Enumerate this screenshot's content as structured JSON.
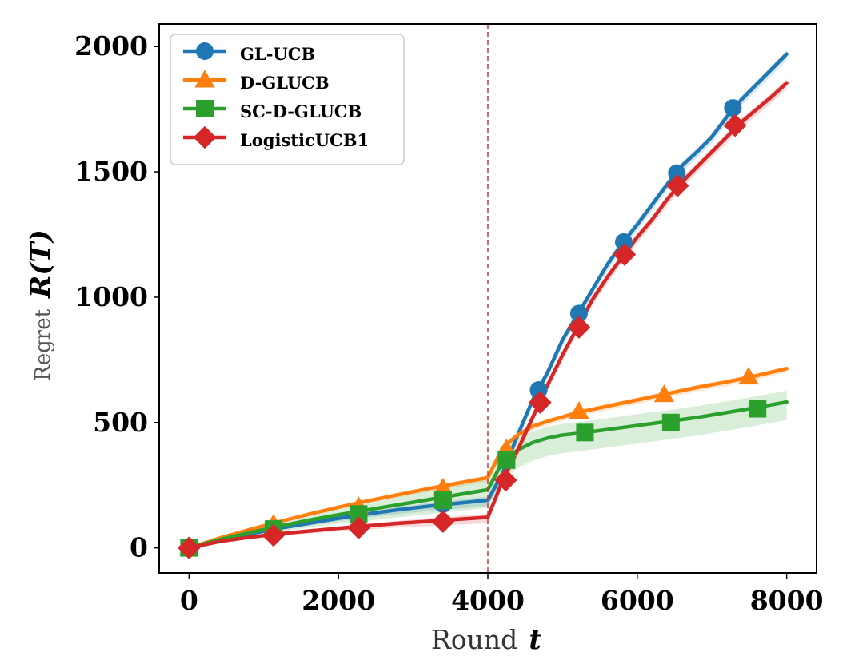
{
  "chart_data": {
    "type": "line",
    "xlabel": {
      "prefix": "Round",
      "var": "t"
    },
    "ylabel": {
      "prefix": "Regret",
      "var": "R(T)"
    },
    "xlim": [
      -400,
      8400
    ],
    "ylim": [
      -100,
      2090
    ],
    "xticks": [
      0,
      2000,
      4000,
      6000,
      8000
    ],
    "xtick_labels": [
      "0",
      "2000",
      "4000",
      "6000",
      "8000"
    ],
    "yticks": [
      0,
      500,
      1000,
      1500,
      2000
    ],
    "ytick_labels": [
      "0",
      "500",
      "1000",
      "1500",
      "2000"
    ],
    "grid": false,
    "legend_position": "top-left",
    "vline": {
      "x": 4000,
      "color": "#d62728",
      "style": "dashed"
    },
    "series": [
      {
        "name": "GL-UCB",
        "color": "#1f77b4",
        "marker": "circle",
        "x": [
          0,
          400,
          800,
          1200,
          1600,
          2000,
          2400,
          2800,
          3200,
          3600,
          4000,
          4200,
          4400,
          4600,
          4800,
          5000,
          5200,
          5400,
          5600,
          5800,
          6000,
          6200,
          6400,
          6600,
          6800,
          7000,
          7200,
          7400,
          7600,
          7800,
          8000
        ],
        "values": [
          0,
          30,
          55,
          78,
          98,
          118,
          136,
          152,
          166,
          178,
          190,
          300,
          450,
          590,
          700,
          830,
          930,
          1030,
          1130,
          1215,
          1290,
          1370,
          1450,
          1525,
          1580,
          1640,
          1720,
          1790,
          1850,
          1910,
          1970
        ],
        "marker_x": [
          0,
          1130,
          2270,
          3400,
          4680,
          5220,
          5820,
          6530,
          7280
        ],
        "marker_values": [
          0,
          70,
          130,
          175,
          630,
          935,
          1220,
          1495,
          1755
        ],
        "band": 15
      },
      {
        "name": "D-GLUCB",
        "color": "#ff7f0e",
        "marker": "triangle",
        "x": [
          0,
          400,
          800,
          1200,
          1600,
          2000,
          2400,
          2800,
          3200,
          3600,
          4000,
          4200,
          4400,
          4600,
          4800,
          5000,
          5200,
          5600,
          6000,
          6400,
          6800,
          7200,
          7600,
          8000
        ],
        "values": [
          0,
          38,
          72,
          104,
          134,
          162,
          188,
          212,
          236,
          258,
          280,
          400,
          450,
          485,
          505,
          522,
          540,
          565,
          590,
          615,
          640,
          662,
          687,
          715
        ],
        "marker_x": [
          0,
          1130,
          2270,
          3400,
          4250,
          5220,
          6360,
          7490
        ],
        "marker_values": [
          0,
          95,
          165,
          240,
          395,
          545,
          612,
          682
        ],
        "band": 10
      },
      {
        "name": "SC-D-GLUCB",
        "color": "#2ca02c",
        "marker": "square",
        "x": [
          0,
          400,
          800,
          1200,
          1600,
          2000,
          2400,
          2800,
          3200,
          3600,
          4000,
          4200,
          4400,
          4600,
          4800,
          5000,
          5300,
          5600,
          6000,
          6400,
          6800,
          7200,
          7600,
          8000
        ],
        "values": [
          0,
          32,
          60,
          86,
          110,
          132,
          152,
          172,
          192,
          212,
          232,
          345,
          390,
          420,
          438,
          450,
          460,
          472,
          488,
          504,
          520,
          540,
          560,
          582
        ],
        "marker_x": [
          0,
          1130,
          2270,
          3400,
          4250,
          5300,
          6450,
          7610
        ],
        "marker_values": [
          0,
          75,
          135,
          190,
          350,
          460,
          500,
          555
        ],
        "band": 45
      },
      {
        "name": "LogisticUCB1",
        "color": "#d62728",
        "marker": "diamond",
        "x": [
          0,
          400,
          800,
          1200,
          1600,
          2000,
          2400,
          2800,
          3200,
          3600,
          4000,
          4200,
          4400,
          4600,
          4800,
          5000,
          5200,
          5400,
          5600,
          5800,
          6000,
          6200,
          6400,
          6600,
          6800,
          7000,
          7200,
          7400,
          7600,
          7800,
          8000
        ],
        "values": [
          0,
          25,
          42,
          56,
          67,
          78,
          88,
          98,
          106,
          114,
          122,
          270,
          390,
          520,
          650,
          770,
          880,
          990,
          1080,
          1160,
          1240,
          1310,
          1390,
          1460,
          1520,
          1580,
          1640,
          1700,
          1750,
          1800,
          1855
        ],
        "marker_x": [
          0,
          1130,
          2270,
          3400,
          4240,
          4700,
          5220,
          5830,
          6540,
          7310
        ],
        "marker_values": [
          0,
          50,
          80,
          105,
          270,
          580,
          880,
          1170,
          1445,
          1685
        ],
        "band": 15
      }
    ]
  }
}
